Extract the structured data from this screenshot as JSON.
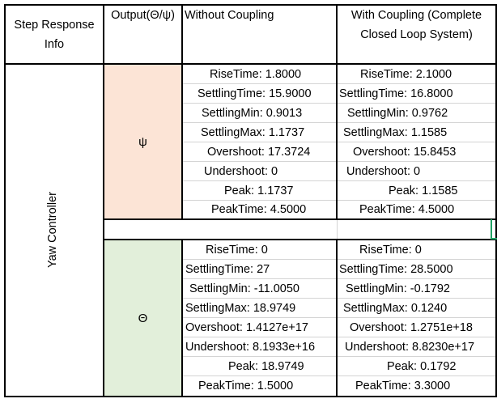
{
  "headers": {
    "info": [
      "Step Response",
      "Info"
    ],
    "output": "Output(Θ/ψ)",
    "without": "Without Coupling",
    "with": [
      "With Coupling (Complete",
      "Closed Loop System)"
    ]
  },
  "row_label": "Yaw Controller",
  "psi": {
    "symbol": "ψ",
    "without": [
      "RiseTime: 1.8000",
      "SettlingTime: 15.9000",
      "SettlingMin: 0.9013",
      "SettlingMax: 1.1737",
      "Overshoot: 17.3724",
      "Undershoot: 0",
      "Peak: 1.1737",
      "PeakTime: 4.5000"
    ],
    "with": [
      "RiseTime: 2.1000",
      "SettlingTime: 16.8000",
      "SettlingMin: 0.9762",
      "SettlingMax: 1.1585",
      "Overshoot: 15.8453",
      "Undershoot: 0",
      "Peak: 1.1585",
      "PeakTime: 4.5000"
    ]
  },
  "theta": {
    "symbol": "Θ",
    "without": [
      "RiseTime: 0",
      "SettlingTime: 27",
      "SettlingMin: -11.0050",
      "SettlingMax: 18.9749",
      "Overshoot: 1.4127e+17",
      "Undershoot: 8.1933e+16",
      "Peak: 18.9749",
      "PeakTime: 1.5000"
    ],
    "with": [
      "RiseTime: 0",
      "SettlingTime: 28.5000",
      "SettlingMin: -0.1792",
      "SettlingMax: 0.1240",
      "Overshoot: 1.2751e+18",
      "Undershoot: 8.8230e+17",
      "Peak: 0.1792",
      "PeakTime: 3.3000"
    ]
  },
  "colors": {
    "psi_fill": "#fce4d6",
    "theta_fill": "#e2efda",
    "selection": "#21a366"
  }
}
